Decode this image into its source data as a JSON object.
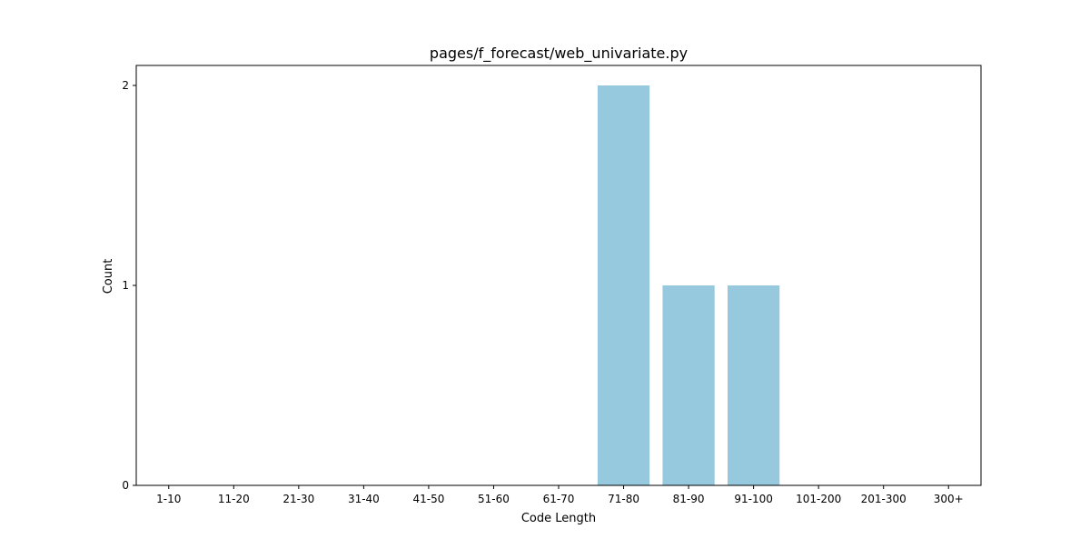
{
  "chart_data": {
    "type": "bar",
    "title": "pages/f_forecast/web_univariate.py",
    "xlabel": "Code Length",
    "ylabel": "Count",
    "categories": [
      "1-10",
      "11-20",
      "21-30",
      "31-40",
      "41-50",
      "51-60",
      "61-70",
      "71-80",
      "81-90",
      "91-100",
      "101-200",
      "201-300",
      "300+"
    ],
    "values": [
      0,
      0,
      0,
      0,
      0,
      0,
      0,
      2,
      1,
      1,
      0,
      0,
      0
    ],
    "yticks": [
      0,
      1,
      2
    ],
    "ylim": [
      0,
      2.1
    ],
    "bar_color": "#96c9dd",
    "grid": false,
    "legend": "none"
  }
}
